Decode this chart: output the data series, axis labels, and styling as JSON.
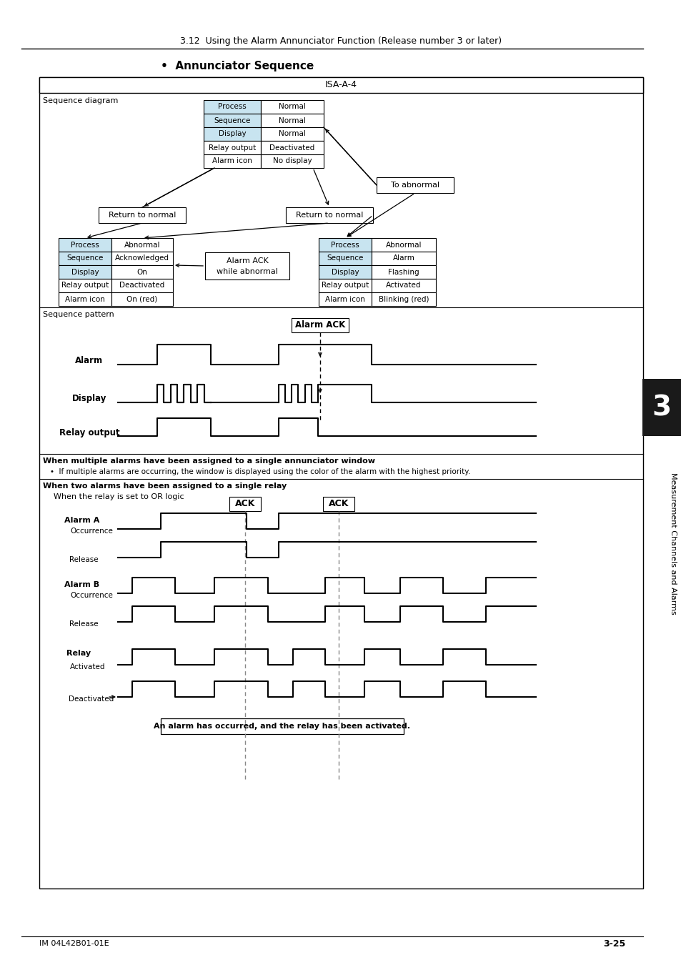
{
  "title_header": "3.12  Using the Alarm Annunciator Function (Release number 3 or later)",
  "bullet_title": "•  Annunciator Sequence",
  "isa_label": "ISA-A-4",
  "page_left": "IM 04L42B01-01E",
  "page_right": "3-25",
  "bg_color": "#ffffff",
  "box_header_color": "#c8e4f0",
  "seq_diagram_label": "Sequence diagram",
  "seq_pattern_label": "Sequence pattern",
  "multi_alarm_bold": "When multiple alarms have been assigned to a single annunciator window",
  "multi_alarm_bullet": "•  If multiple alarms are occurring, the window is displayed using the color of the alarm with the highest priority.",
  "two_alarms_bold": "When two alarms have been assigned to a single relay",
  "two_alarms_sub": "When the relay is set to OR logic",
  "note_text": "An alarm has occurred, and the relay has been activated.",
  "alarm_ack_label": "Alarm ACK",
  "to_abnormal": "To abnormal",
  "return_normal": "Return to normal",
  "alarm_ack_while": [
    "Alarm ACK",
    "while abnormal"
  ],
  "center_table": [
    [
      "Process",
      "Normal"
    ],
    [
      "Sequence",
      "Normal"
    ],
    [
      "Display",
      "Normal"
    ],
    [
      "Relay output",
      "Deactivated"
    ],
    [
      "Alarm icon",
      "No display"
    ]
  ],
  "left_table": [
    [
      "Process",
      "Abnormal"
    ],
    [
      "Sequence",
      "Acknowledged"
    ],
    [
      "Display",
      "On"
    ],
    [
      "Relay output",
      "Deactivated"
    ],
    [
      "Alarm icon",
      "On (red)"
    ]
  ],
  "right_table": [
    [
      "Process",
      "Abnormal"
    ],
    [
      "Sequence",
      "Alarm"
    ],
    [
      "Display",
      "Flashing"
    ],
    [
      "Relay output",
      "Activated"
    ],
    [
      "Alarm icon",
      "Blinking (red)"
    ]
  ],
  "blue_rows": [
    "Process",
    "Sequence",
    "Display"
  ]
}
